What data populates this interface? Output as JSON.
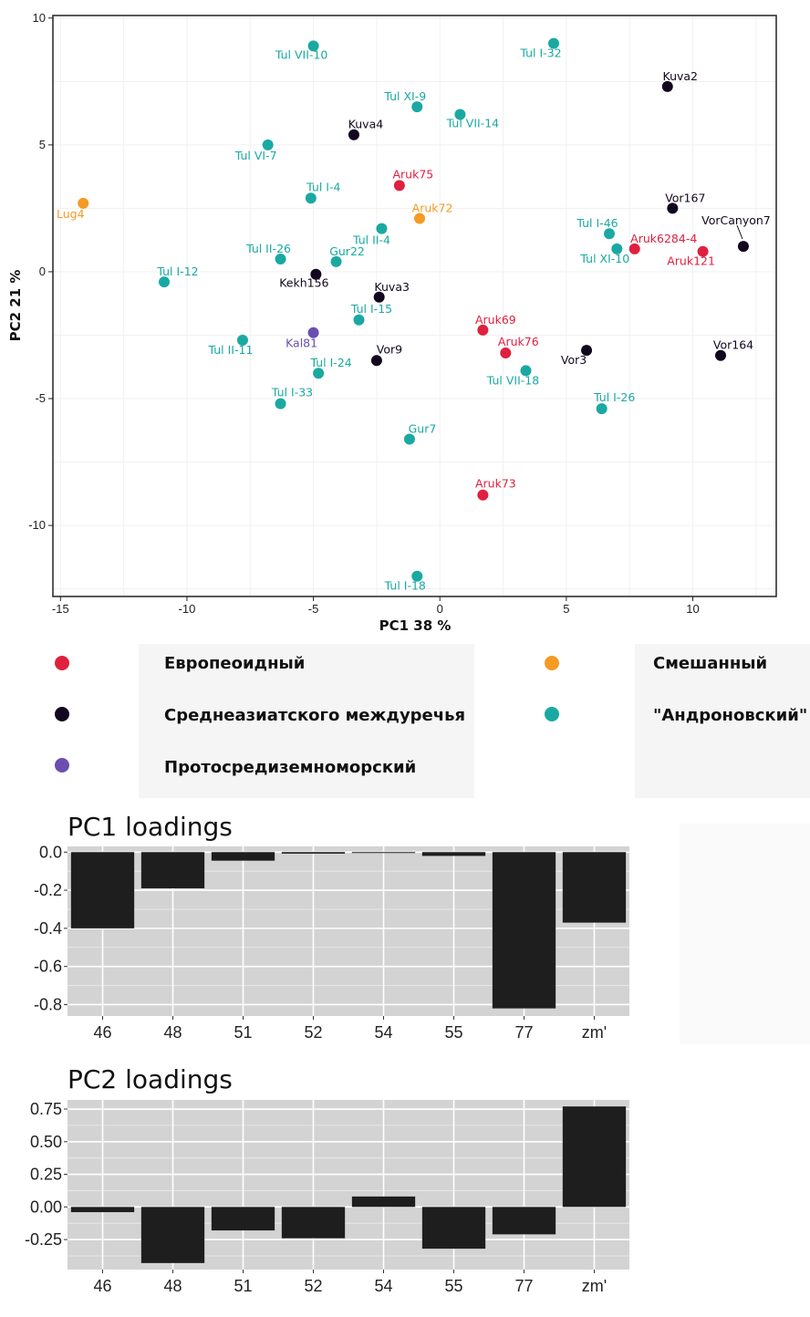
{
  "chart_data": [
    {
      "type": "scatter",
      "xlabel": "PC1 38 %",
      "ylabel": "PC2 21 %",
      "xlim": [
        -15.3,
        13.3
      ],
      "ylim": [
        -12.8,
        10.1
      ],
      "xticks": [
        -15,
        -10,
        -5,
        0,
        5,
        10
      ],
      "yticks": [
        10,
        5,
        0,
        -5,
        -10
      ],
      "xtick_labels": [
        "-15",
        "-10",
        "-5",
        "0",
        "5",
        "10"
      ],
      "ytick_labels": [
        "10",
        "5",
        "0",
        "-5",
        "-10"
      ],
      "grid": true,
      "groups": [
        {
          "key": "eur",
          "name": "Европеоидный",
          "color": "#e0203f"
        },
        {
          "key": "mixed",
          "name": "Смешанный",
          "color": "#f59a23"
        },
        {
          "key": "central",
          "name": "Среднеазиатского междуречья",
          "color": "#12071f"
        },
        {
          "key": "andr",
          "name": "\"Андроновский\"",
          "color": "#1aa9a2"
        },
        {
          "key": "proto",
          "name": "Протосредиземноморский",
          "color": "#6a4fb0"
        }
      ],
      "points": [
        {
          "label": "Tul VII-10",
          "x": -5.0,
          "y": 8.9,
          "group": "andr"
        },
        {
          "label": "Tul I-32",
          "x": 4.5,
          "y": 9.0,
          "group": "andr"
        },
        {
          "label": "Kuva2",
          "x": 9.0,
          "y": 7.3,
          "group": "central"
        },
        {
          "label": "Tul XI-9",
          "x": -0.9,
          "y": 6.5,
          "group": "andr"
        },
        {
          "label": "Tul VII-14",
          "x": 0.8,
          "y": 6.2,
          "group": "andr"
        },
        {
          "label": "Kuva4",
          "x": -3.4,
          "y": 5.4,
          "group": "central"
        },
        {
          "label": "Tul VI-7",
          "x": -6.8,
          "y": 5.0,
          "group": "andr"
        },
        {
          "label": "Aruk75",
          "x": -1.6,
          "y": 3.4,
          "group": "eur"
        },
        {
          "label": "Tul I-4",
          "x": -5.1,
          "y": 2.9,
          "group": "andr"
        },
        {
          "label": "Lug4",
          "x": -14.1,
          "y": 2.7,
          "group": "mixed"
        },
        {
          "label": "Aruk72",
          "x": -0.8,
          "y": 2.1,
          "group": "mixed"
        },
        {
          "label": "Vor167",
          "x": 9.2,
          "y": 2.5,
          "group": "central"
        },
        {
          "label": "Tul II-4",
          "x": -2.3,
          "y": 1.7,
          "group": "andr"
        },
        {
          "label": "Tul I-46",
          "x": 6.7,
          "y": 1.5,
          "group": "andr"
        },
        {
          "label": "VorCanyon7",
          "x": 12.0,
          "y": 1.0,
          "group": "central"
        },
        {
          "label": "Aruk6284-4",
          "x": 7.7,
          "y": 0.9,
          "group": "eur"
        },
        {
          "label": "Aruk121",
          "x": 10.4,
          "y": 0.8,
          "group": "eur"
        },
        {
          "label": "Tul XI-10",
          "x": 7.0,
          "y": 0.9,
          "group": "andr"
        },
        {
          "label": "Tul II-26",
          "x": -6.3,
          "y": 0.5,
          "group": "andr"
        },
        {
          "label": "Gur22",
          "x": -4.1,
          "y": 0.4,
          "group": "andr"
        },
        {
          "label": "Tul I-12",
          "x": -10.9,
          "y": -0.4,
          "group": "andr"
        },
        {
          "label": "Kekh156",
          "x": -4.9,
          "y": -0.1,
          "group": "central"
        },
        {
          "label": "Kuva3",
          "x": -2.4,
          "y": -1.0,
          "group": "central"
        },
        {
          "label": "Tul I-15",
          "x": -3.2,
          "y": -1.9,
          "group": "andr"
        },
        {
          "label": "Aruk69",
          "x": 1.7,
          "y": -2.3,
          "group": "eur"
        },
        {
          "label": "Kal81",
          "x": -5.0,
          "y": -2.4,
          "group": "proto"
        },
        {
          "label": "Tul II-11",
          "x": -7.8,
          "y": -2.7,
          "group": "andr"
        },
        {
          "label": "Aruk76",
          "x": 2.6,
          "y": -3.2,
          "group": "eur"
        },
        {
          "label": "Vor3",
          "x": 5.8,
          "y": -3.1,
          "group": "central"
        },
        {
          "label": "Vor164",
          "x": 11.1,
          "y": -3.3,
          "group": "central"
        },
        {
          "label": "Vor9",
          "x": -2.5,
          "y": -3.5,
          "group": "central"
        },
        {
          "label": "Tul I-24",
          "x": -4.8,
          "y": -4.0,
          "group": "andr"
        },
        {
          "label": "Tul VII-18",
          "x": 3.4,
          "y": -3.9,
          "group": "andr"
        },
        {
          "label": "Tul I-33",
          "x": -6.3,
          "y": -5.2,
          "group": "andr"
        },
        {
          "label": "Tul I-26",
          "x": 6.4,
          "y": -5.4,
          "group": "andr"
        },
        {
          "label": "Gur7",
          "x": -1.2,
          "y": -6.6,
          "group": "andr"
        },
        {
          "label": "Aruk73",
          "x": 1.7,
          "y": -8.8,
          "group": "eur"
        },
        {
          "label": "Tul I-18",
          "x": -0.9,
          "y": -12.0,
          "group": "andr"
        }
      ]
    },
    {
      "type": "bar",
      "title": "PC1 loadings",
      "categories": [
        "46",
        "48",
        "51",
        "52",
        "54",
        "55",
        "77",
        "zm'"
      ],
      "values": [
        -0.4,
        -0.19,
        -0.045,
        -0.008,
        -0.004,
        -0.02,
        -0.82,
        -0.37
      ],
      "ylim": [
        -0.86,
        0.03
      ],
      "yticks": [
        0.0,
        -0.2,
        -0.4,
        -0.6,
        -0.8
      ],
      "ytick_labels": [
        "0.0",
        "-0.2",
        "-0.4",
        "-0.6",
        "-0.8"
      ],
      "grid": true
    },
    {
      "type": "bar",
      "title": "PC2 loadings",
      "categories": [
        "46",
        "48",
        "51",
        "52",
        "54",
        "55",
        "77",
        "zm'"
      ],
      "values": [
        -0.04,
        -0.43,
        -0.18,
        -0.24,
        0.08,
        -0.32,
        -0.21,
        0.77
      ],
      "ylim": [
        -0.48,
        0.82
      ],
      "yticks": [
        0.75,
        0.5,
        0.25,
        0.0,
        -0.25
      ],
      "ytick_labels": [
        "0.75",
        "0.50",
        "0.25",
        "0.00",
        "-0.25"
      ],
      "grid": true
    }
  ]
}
